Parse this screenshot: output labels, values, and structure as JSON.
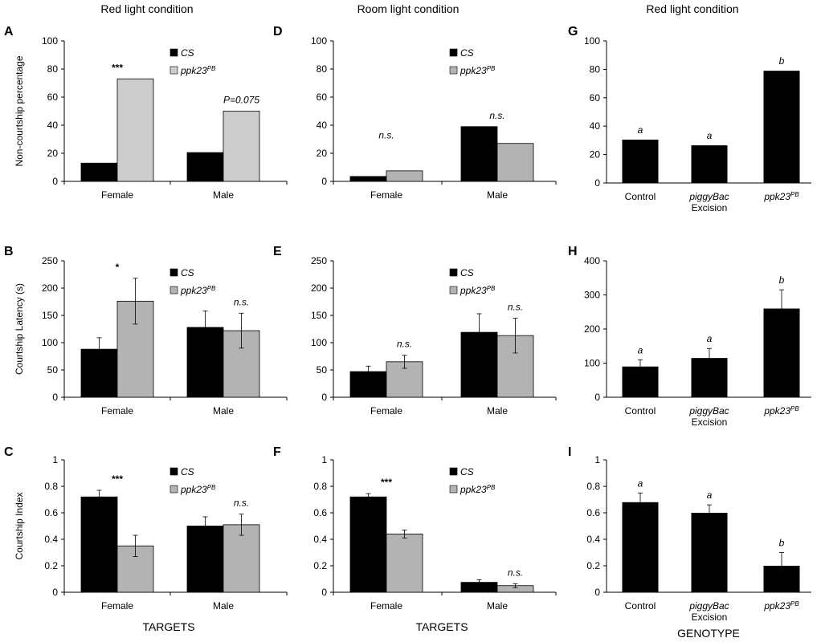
{
  "column_titles": [
    "Red light condition",
    "Room light condition",
    "Red light condition"
  ],
  "bottom_labels": [
    "TARGETS",
    "TARGETS",
    "GENOTYPE"
  ],
  "colors": {
    "cs": "#000000",
    "ppk_light": "#cccccc",
    "ppk_mid": "#b3b3b3",
    "axis": "#000000"
  },
  "chart_data": [
    {
      "panel": "A",
      "type": "bar",
      "col": 0,
      "row": 0,
      "ylabel": "Non-courtship percentage",
      "ylim": [
        0,
        100
      ],
      "yticks": [
        "0",
        "20",
        "40",
        "60",
        "80",
        "100"
      ],
      "categories": [
        "Female",
        "Male"
      ],
      "series": [
        {
          "name": "CS",
          "values": [
            13,
            20.5
          ],
          "color": "#000000"
        },
        {
          "name": "ppk23",
          "name_sup": "PB",
          "values": [
            73,
            50
          ],
          "color": "#cccccc"
        }
      ],
      "annotations": [
        {
          "text": "***",
          "cat": 0
        },
        {
          "text": "P=0.075",
          "cat": 1
        }
      ],
      "legend": "top-right"
    },
    {
      "panel": "B",
      "type": "bar",
      "col": 0,
      "row": 1,
      "ylabel": "Courtship Latency (s)",
      "ylim": [
        0,
        250
      ],
      "yticks": [
        "0",
        "50",
        "100",
        "150",
        "200",
        "250"
      ],
      "categories": [
        "Female",
        "Male"
      ],
      "series": [
        {
          "name": "CS",
          "values": [
            88,
            128
          ],
          "errors": [
            21,
            30
          ],
          "color": "#000000"
        },
        {
          "name": "ppk23",
          "name_sup": "PB",
          "values": [
            176,
            122
          ],
          "errors": [
            42,
            32
          ],
          "color": "#b3b3b3"
        }
      ],
      "annotations": [
        {
          "text": "*",
          "cat": 0
        },
        {
          "text": "n.s.",
          "cat": 1
        }
      ],
      "legend": "top-right"
    },
    {
      "panel": "C",
      "type": "bar",
      "col": 0,
      "row": 2,
      "ylabel": "Courtship Index",
      "ylim": [
        0,
        1
      ],
      "yticks": [
        "0",
        "0.2",
        "0.4",
        "0.6",
        "0.8",
        "1"
      ],
      "categories": [
        "Female",
        "Male"
      ],
      "series": [
        {
          "name": "CS",
          "values": [
            0.72,
            0.5
          ],
          "errors": [
            0.05,
            0.07
          ],
          "color": "#000000"
        },
        {
          "name": "ppk23",
          "name_sup": "PB",
          "values": [
            0.35,
            0.51
          ],
          "errors": [
            0.08,
            0.08
          ],
          "color": "#b3b3b3"
        }
      ],
      "annotations": [
        {
          "text": "***",
          "cat": 0
        },
        {
          "text": "n.s.",
          "cat": 1
        }
      ],
      "legend": "top-right"
    },
    {
      "panel": "D",
      "type": "bar",
      "col": 1,
      "row": 0,
      "ylabel": "",
      "ylim": [
        0,
        100
      ],
      "yticks": [
        "0",
        "20",
        "40",
        "60",
        "80",
        "100"
      ],
      "categories": [
        "Female",
        "Male"
      ],
      "series": [
        {
          "name": "CS",
          "values": [
            3.5,
            39
          ],
          "color": "#000000"
        },
        {
          "name": "ppk23",
          "name_sup": "PB",
          "values": [
            7.5,
            27
          ],
          "color": "#b3b3b3"
        }
      ],
      "annotations": [
        {
          "text": "n.s.",
          "cat": 0
        },
        {
          "text": "n.s.",
          "cat": 1
        }
      ],
      "legend": "top-right"
    },
    {
      "panel": "E",
      "type": "bar",
      "col": 1,
      "row": 1,
      "ylabel": "",
      "ylim": [
        0,
        250
      ],
      "yticks": [
        "0",
        "50",
        "100",
        "150",
        "200",
        "250"
      ],
      "categories": [
        "Female",
        "Male"
      ],
      "series": [
        {
          "name": "CS",
          "values": [
            47,
            119
          ],
          "errors": [
            10,
            34
          ],
          "color": "#000000"
        },
        {
          "name": "ppk23",
          "name_sup": "PB",
          "values": [
            65,
            113
          ],
          "errors": [
            12,
            32
          ],
          "color": "#b3b3b3"
        }
      ],
      "annotations": [
        {
          "text": "n.s.",
          "cat": 0
        },
        {
          "text": "n.s.",
          "cat": 1
        }
      ],
      "legend": "top-right"
    },
    {
      "panel": "F",
      "type": "bar",
      "col": 1,
      "row": 2,
      "ylabel": "",
      "ylim": [
        0,
        1
      ],
      "yticks": [
        "0",
        "0.2",
        "0.4",
        "0.6",
        "0.8",
        "1"
      ],
      "categories": [
        "Female",
        "Male"
      ],
      "series": [
        {
          "name": "CS",
          "values": [
            0.72,
            0.075
          ],
          "errors": [
            0.025,
            0.02
          ],
          "color": "#000000"
        },
        {
          "name": "ppk23",
          "name_sup": "PB",
          "values": [
            0.44,
            0.05
          ],
          "errors": [
            0.03,
            0.015
          ],
          "color": "#b3b3b3"
        }
      ],
      "annotations": [
        {
          "text": "***",
          "cat": 0
        },
        {
          "text": "n.s.",
          "cat": 1
        }
      ],
      "legend": "top-right"
    },
    {
      "panel": "G",
      "type": "bar",
      "col": 2,
      "row": 0,
      "ylabel": "",
      "ylim": [
        0,
        100
      ],
      "yticks": [
        "0",
        "20",
        "40",
        "60",
        "80",
        "100"
      ],
      "categories": [
        "Control",
        "piggyBac|Excision",
        "ppk23^PB"
      ],
      "series": [
        {
          "name": "",
          "values": [
            30.5,
            26.5,
            79
          ],
          "color": "#000000"
        }
      ],
      "letters": [
        "a",
        "a",
        "b"
      ]
    },
    {
      "panel": "H",
      "type": "bar",
      "col": 2,
      "row": 1,
      "ylabel": "",
      "ylim": [
        0,
        400
      ],
      "yticks": [
        "0",
        "100",
        "200",
        "300",
        "400"
      ],
      "categories": [
        "Control",
        "piggyBac|Excision",
        "ppk23^PB"
      ],
      "series": [
        {
          "name": "",
          "values": [
            90,
            115,
            260
          ],
          "errors": [
            20,
            28,
            55
          ],
          "color": "#000000"
        }
      ],
      "letters": [
        "a",
        "a",
        "b"
      ]
    },
    {
      "panel": "I",
      "type": "bar",
      "col": 2,
      "row": 2,
      "ylabel": "",
      "ylim": [
        0,
        1
      ],
      "yticks": [
        "0",
        "0.2",
        "0.4",
        "0.6",
        "0.8",
        "1"
      ],
      "categories": [
        "Control",
        "piggyBac|Excision",
        "ppk23^PB"
      ],
      "series": [
        {
          "name": "",
          "values": [
            0.68,
            0.6,
            0.2
          ],
          "errors": [
            0.07,
            0.06,
            0.1
          ],
          "color": "#000000"
        }
      ],
      "letters": [
        "a",
        "a",
        "b"
      ]
    }
  ]
}
